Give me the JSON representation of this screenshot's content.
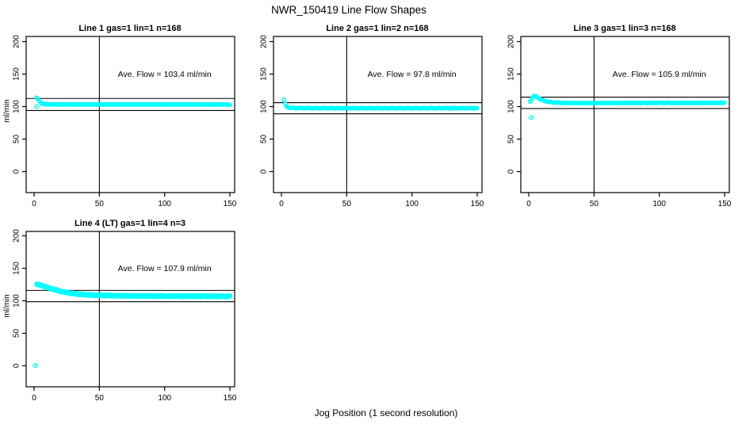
{
  "chart_data": {
    "type": "scatter",
    "title": "NWR_150419  Line Flow Shapes",
    "xlabel": "Jog Position (1 second resolution)",
    "ylabel": "ml/min",
    "xlim": [
      0,
      150
    ],
    "ylim": [
      0,
      200
    ],
    "x_ticks": [
      0,
      50,
      100,
      150
    ],
    "y_ticks": [
      0,
      50,
      100,
      150,
      200
    ],
    "grid": false,
    "legend": "none",
    "marker": "open-circle",
    "marker_color": "#00FFFF",
    "axis_color": "#000000",
    "vline_x": 50,
    "panels": [
      {
        "title": "Line 1 gas=1 lin=1 n=168",
        "n": 168,
        "ave_flow": 103.4,
        "ave_flow_text": "Ave. Flow =  103.4  ml/min",
        "hlines": [
          112.5,
          94
        ],
        "runs": 1,
        "markers": 168,
        "trace": [
          [
            2,
            113.8
          ],
          [
            3,
            111.5
          ],
          [
            4,
            108.5
          ],
          [
            5,
            106.2
          ],
          [
            6,
            104.8
          ],
          [
            8,
            103.9
          ],
          [
            10,
            103.6
          ],
          [
            14,
            103.4
          ],
          [
            20,
            103.4
          ],
          [
            40,
            103.3
          ],
          [
            70,
            103.3
          ],
          [
            100,
            103.3
          ],
          [
            130,
            103.2
          ],
          [
            150,
            103.2
          ]
        ],
        "outliers": [
          [
            2,
            100
          ]
        ]
      },
      {
        "title": "Line 2 gas=1 lin=2 n=168",
        "n": 168,
        "ave_flow": 97.8,
        "ave_flow_text": "Ave. Flow =  97.8  ml/min",
        "hlines": [
          106,
          89
        ],
        "runs": 1,
        "markers": 168,
        "trace": [
          [
            3,
            103.5
          ],
          [
            4,
            100.5
          ],
          [
            5,
            99
          ],
          [
            6,
            98.3
          ],
          [
            8,
            97.9
          ],
          [
            12,
            97.7
          ],
          [
            20,
            97.7
          ],
          [
            50,
            97.6
          ],
          [
            100,
            97.6
          ],
          [
            150,
            97.6
          ]
        ],
        "outliers": [
          [
            2,
            110.5
          ]
        ]
      },
      {
        "title": "Line 3 gas=1 lin=3 n=168",
        "n": 168,
        "ave_flow": 105.9,
        "ave_flow_text": "Ave. Flow =  105.9  ml/min",
        "hlines": [
          114.5,
          97
        ],
        "runs": 1,
        "markers": 168,
        "trace": [
          [
            1,
            107.5
          ],
          [
            2,
            110.5
          ],
          [
            3,
            114
          ],
          [
            4,
            116.3
          ],
          [
            5,
            116.5
          ],
          [
            6,
            115
          ],
          [
            8,
            112.5
          ],
          [
            10,
            110.3
          ],
          [
            13,
            108.4
          ],
          [
            16,
            107
          ],
          [
            20,
            106.3
          ],
          [
            26,
            105.8
          ],
          [
            35,
            105.5
          ],
          [
            50,
            105.5
          ],
          [
            70,
            105.7
          ],
          [
            100,
            105.8
          ],
          [
            125,
            105.7
          ],
          [
            150,
            105.9
          ]
        ],
        "outliers": [
          [
            2,
            83
          ]
        ]
      },
      {
        "title": "Line 4 (LT) gas=1 lin=4 n=3",
        "n": 3,
        "ave_flow": 107.9,
        "ave_flow_text": "Ave. Flow =  107.9  ml/min",
        "hlines": [
          116,
          98.5
        ],
        "runs": 3,
        "markers": 150,
        "trace": [
          [
            2,
            125.5
          ],
          [
            3,
            125.2
          ],
          [
            5,
            124
          ],
          [
            7,
            122.8
          ],
          [
            10,
            120.8
          ],
          [
            13,
            118.8
          ],
          [
            16,
            117
          ],
          [
            20,
            114.8
          ],
          [
            24,
            113
          ],
          [
            28,
            111.8
          ],
          [
            33,
            110.5
          ],
          [
            38,
            109.6
          ],
          [
            44,
            108.9
          ],
          [
            50,
            108.4
          ],
          [
            58,
            108
          ],
          [
            68,
            107.7
          ],
          [
            80,
            107.4
          ],
          [
            95,
            107.3
          ],
          [
            110,
            107.1
          ],
          [
            125,
            107
          ],
          [
            140,
            106.9
          ],
          [
            150,
            106.8
          ]
        ],
        "outliers": [
          [
            1,
            0.3
          ]
        ]
      }
    ]
  }
}
